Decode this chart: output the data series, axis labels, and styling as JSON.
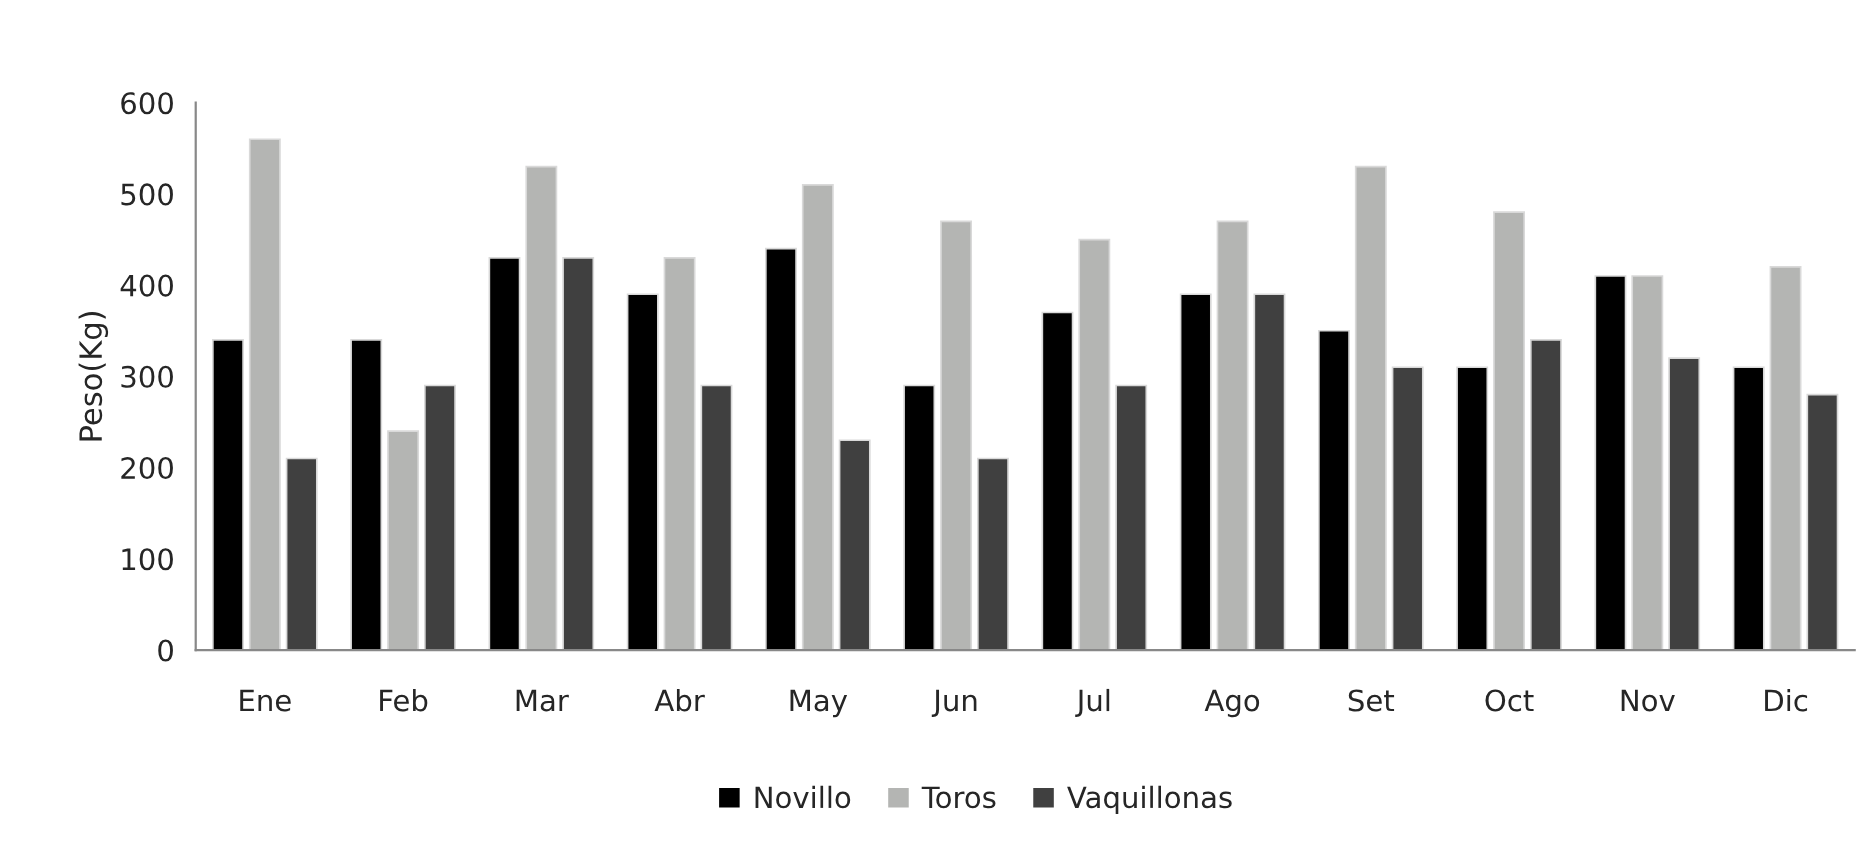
{
  "chart_data": {
    "type": "bar",
    "ylabel": "Peso(Kg)",
    "categories": [
      "Ene",
      "Feb",
      "Mar",
      "Abr",
      "May",
      "Jun",
      "Jul",
      "Ago",
      "Set",
      "Oct",
      "Nov",
      "Dic"
    ],
    "series": [
      {
        "name": "Novillo",
        "color": "#000000",
        "values": [
          340,
          340,
          430,
          390,
          440,
          290,
          370,
          390,
          350,
          310,
          410,
          310
        ]
      },
      {
        "name": "Toros",
        "color": "#b4b5b3",
        "values": [
          560,
          240,
          530,
          430,
          510,
          470,
          450,
          470,
          530,
          480,
          410,
          420
        ]
      },
      {
        "name": "Vaquillonas",
        "color": "#404040",
        "values": [
          210,
          290,
          430,
          290,
          230,
          210,
          290,
          390,
          310,
          340,
          320,
          280
        ]
      }
    ],
    "ylim": [
      0,
      600
    ],
    "yticks": [
      0,
      100,
      200,
      300,
      400,
      500,
      600
    ],
    "grid": false,
    "legend": "bottom"
  }
}
